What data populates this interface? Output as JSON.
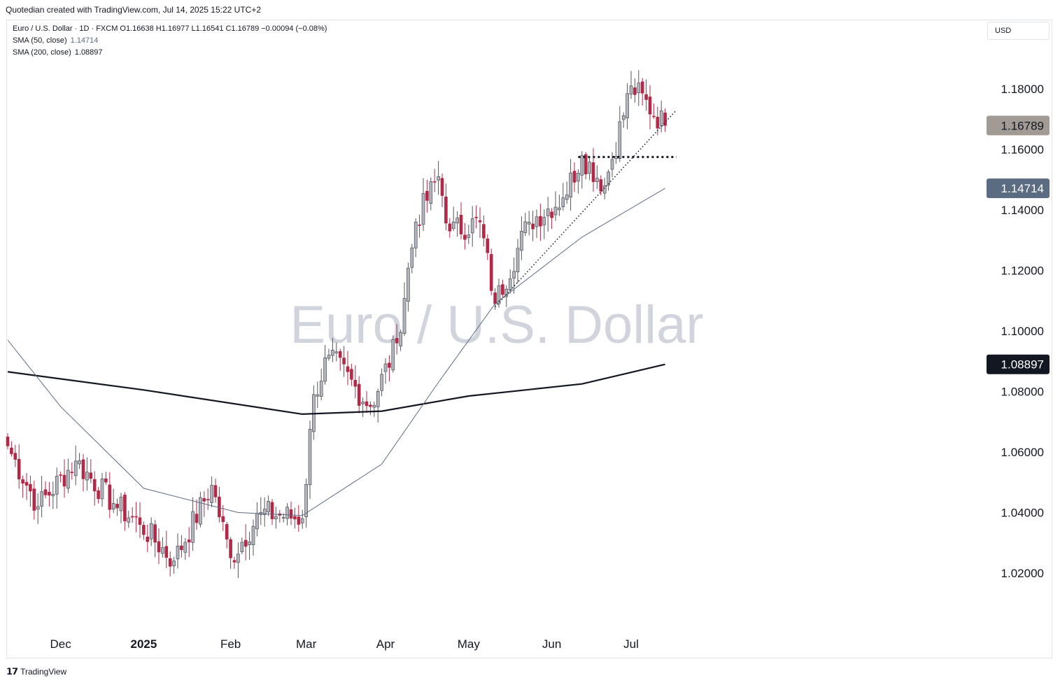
{
  "header": {
    "caption": "Quotedian created with TradingView.com, Jul 14, 2025 15:22 UTC+2"
  },
  "legend": {
    "line1": "Euro / U.S. Dollar · 1D · FXCM  O1.16638  H1.16977  L1.16541  C1.16789  −0.00094 (−0.08%)",
    "sma50_label": "SMA (50, close)",
    "sma50_value": "1.14714",
    "sma200_label": "SMA (200, close)",
    "sma200_value": "1.08897"
  },
  "currency_button": "USD",
  "watermark": "Euro / U.S. Dollar",
  "footer": {
    "brand": "TradingView"
  },
  "colors": {
    "up": "#b2b5be",
    "down": "#b22846",
    "sma50": "#5b6b82",
    "sma200": "#131722",
    "last_price_badge": "#a29a94",
    "sma50_badge": "#5b6b82",
    "sma200_badge": "#131722"
  },
  "chart_data": {
    "type": "candlestick",
    "symbol": "Euro / U.S. Dollar",
    "timeframe": "1D",
    "y_axis": {
      "ticks": [
        "1.18000",
        "1.16000",
        "1.14000",
        "1.12000",
        "1.10000",
        "1.08000",
        "1.06000",
        "1.04000",
        "1.02000"
      ],
      "range": [
        1.002,
        1.193
      ]
    },
    "x_axis": {
      "ticks": [
        "Dec",
        "2025",
        "Feb",
        "Mar",
        "Apr",
        "May",
        "Jun",
        "Jul"
      ]
    },
    "price_labels": [
      {
        "value": 1.16789,
        "text": "1.16789",
        "kind": "last"
      },
      {
        "value": 1.14714,
        "text": "1.14714",
        "kind": "sma50"
      },
      {
        "value": 1.08897,
        "text": "1.08897",
        "kind": "sma200"
      }
    ],
    "anchors": [
      {
        "date": "2024-11-12",
        "close": 1.062
      },
      {
        "date": "2024-11-22",
        "close": 1.042
      },
      {
        "date": "2024-12-06",
        "close": 1.057
      },
      {
        "date": "2024-12-20",
        "close": 1.043
      },
      {
        "date": "2024-12-31",
        "close": 1.036
      },
      {
        "date": "2025-01-13",
        "close": 1.024
      },
      {
        "date": "2025-01-27",
        "close": 1.049
      },
      {
        "date": "2025-02-03",
        "close": 1.025
      },
      {
        "date": "2025-02-13",
        "close": 1.04
      },
      {
        "date": "2025-02-28",
        "close": 1.038
      },
      {
        "date": "2025-03-05",
        "close": 1.079
      },
      {
        "date": "2025-03-11",
        "close": 1.092
      },
      {
        "date": "2025-03-26",
        "close": 1.075
      },
      {
        "date": "2025-04-04",
        "close": 1.096
      },
      {
        "date": "2025-04-11",
        "close": 1.136
      },
      {
        "date": "2025-04-21",
        "close": 1.151
      },
      {
        "date": "2025-04-24",
        "close": 1.133
      },
      {
        "date": "2025-05-06",
        "close": 1.136
      },
      {
        "date": "2025-05-12",
        "close": 1.109
      },
      {
        "date": "2025-05-23",
        "close": 1.136
      },
      {
        "date": "2025-06-05",
        "close": 1.144
      },
      {
        "date": "2025-06-12",
        "close": 1.158
      },
      {
        "date": "2025-06-20",
        "close": 1.148
      },
      {
        "date": "2025-07-01",
        "close": 1.181
      },
      {
        "date": "2025-07-14",
        "close": 1.16789
      }
    ],
    "sma50_points": [
      {
        "date": "2024-11-12",
        "value": 1.097
      },
      {
        "date": "2024-12-02",
        "value": 1.075
      },
      {
        "date": "2025-01-01",
        "value": 1.048
      },
      {
        "date": "2025-02-05",
        "value": 1.04
      },
      {
        "date": "2025-02-28",
        "value": 1.039
      },
      {
        "date": "2025-03-31",
        "value": 1.056
      },
      {
        "date": "2025-04-21",
        "value": 1.083
      },
      {
        "date": "2025-05-12",
        "value": 1.109
      },
      {
        "date": "2025-06-12",
        "value": 1.131
      },
      {
        "date": "2025-07-14",
        "value": 1.14714
      }
    ],
    "sma200_points": [
      {
        "date": "2024-11-12",
        "value": 1.0865
      },
      {
        "date": "2025-01-01",
        "value": 1.0805
      },
      {
        "date": "2025-02-28",
        "value": 1.0725
      },
      {
        "date": "2025-03-31",
        "value": 1.0735
      },
      {
        "date": "2025-05-01",
        "value": 1.0785
      },
      {
        "date": "2025-06-12",
        "value": 1.0825
      },
      {
        "date": "2025-07-14",
        "value": 1.08897
      }
    ],
    "annotations": [
      {
        "type": "dotted-trendline",
        "from": {
          "date": "2025-05-12",
          "value": 1.108
        },
        "to": {
          "date": "2025-07-17",
          "value": 1.173
        }
      },
      {
        "type": "dotted-horizontal",
        "value": 1.1575,
        "from_date": "2025-06-11",
        "to_date": "2025-07-17"
      }
    ]
  }
}
